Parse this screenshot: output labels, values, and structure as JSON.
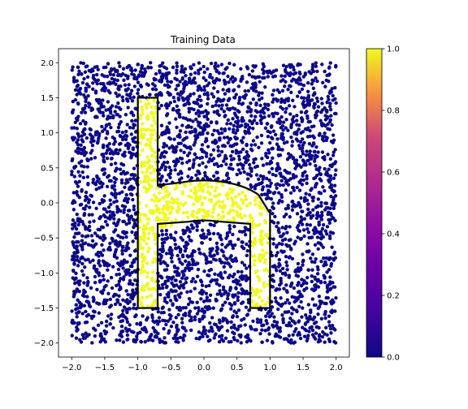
{
  "chart_data": {
    "type": "scatter",
    "title": "Training Data",
    "xlabel": "",
    "ylabel": "",
    "xlim": [
      -2.2,
      2.2
    ],
    "ylim": [
      -2.2,
      2.2
    ],
    "xticks": [
      -2.0,
      -1.5,
      -1.0,
      -0.5,
      0.0,
      0.5,
      1.0,
      1.5,
      2.0
    ],
    "yticks": [
      -2.0,
      -1.5,
      -1.0,
      -0.5,
      0.0,
      0.5,
      1.0,
      1.5,
      2.0
    ],
    "xtick_labels": [
      "−2.0",
      "−1.5",
      "−1.0",
      "−0.5",
      "0.0",
      "0.5",
      "1.0",
      "1.5",
      "2.0"
    ],
    "ytick_labels": [
      "−2.0",
      "−1.5",
      "−1.0",
      "−0.5",
      "0.0",
      "0.5",
      "1.0",
      "1.5",
      "2.0"
    ],
    "grid": false,
    "colormap": "plasma",
    "colorbar": {
      "range": [
        0.0,
        1.0
      ],
      "ticks": [
        0.0,
        0.2,
        0.4,
        0.6,
        0.8,
        1.0
      ],
      "tick_labels": [
        "0.0",
        "0.2",
        "0.4",
        "0.6",
        "0.8",
        "1.0"
      ]
    },
    "point_distribution": {
      "region": {
        "x": [
          -2.0,
          2.0
        ],
        "y": [
          -2.0,
          2.0
        ]
      },
      "approx_count": 4000,
      "label_inside_shape": 1.0,
      "label_outside_shape": 0.0,
      "color_inside": "#f0f921",
      "color_outside": "#0d0887"
    },
    "boundary_shape": {
      "description": "letter h outline",
      "stem": {
        "x": [
          -1.0,
          -0.7
        ],
        "y": [
          -1.5,
          1.5
        ]
      },
      "right_leg": {
        "x": [
          0.7,
          1.0
        ],
        "y": [
          -1.5,
          -0.15
        ]
      },
      "arch_outer": {
        "center": [
          0.0,
          -0.15
        ],
        "rx": 1.0,
        "ry": 0.47
      },
      "arch_inner": {
        "center": [
          0.0,
          -0.6
        ],
        "rx": 0.7,
        "ry": 0.35
      }
    }
  }
}
